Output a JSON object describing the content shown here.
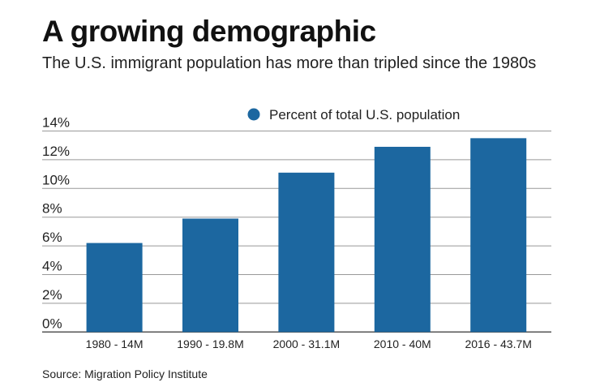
{
  "title": "A growing demographic",
  "subtitle": "The U.S. immigrant population has more than tripled since the 1980s",
  "source": "Source: Migration Policy Institute",
  "chart_data": {
    "type": "bar",
    "categories": [
      "1980 - 14M",
      "1990 - 19.8M",
      "2000 - 31.1M",
      "2010 - 40M",
      "2016 - 43.7M"
    ],
    "series": [
      {
        "name": "Percent of total U.S. population",
        "values": [
          6.2,
          7.9,
          11.1,
          12.9,
          13.5
        ],
        "color": "#1c67a0"
      }
    ],
    "yticks": [
      "0%",
      "2%",
      "4%",
      "6%",
      "8%",
      "10%",
      "12%",
      "14%"
    ],
    "ylim": [
      0,
      14
    ],
    "grid": true,
    "legend": "top-right"
  }
}
